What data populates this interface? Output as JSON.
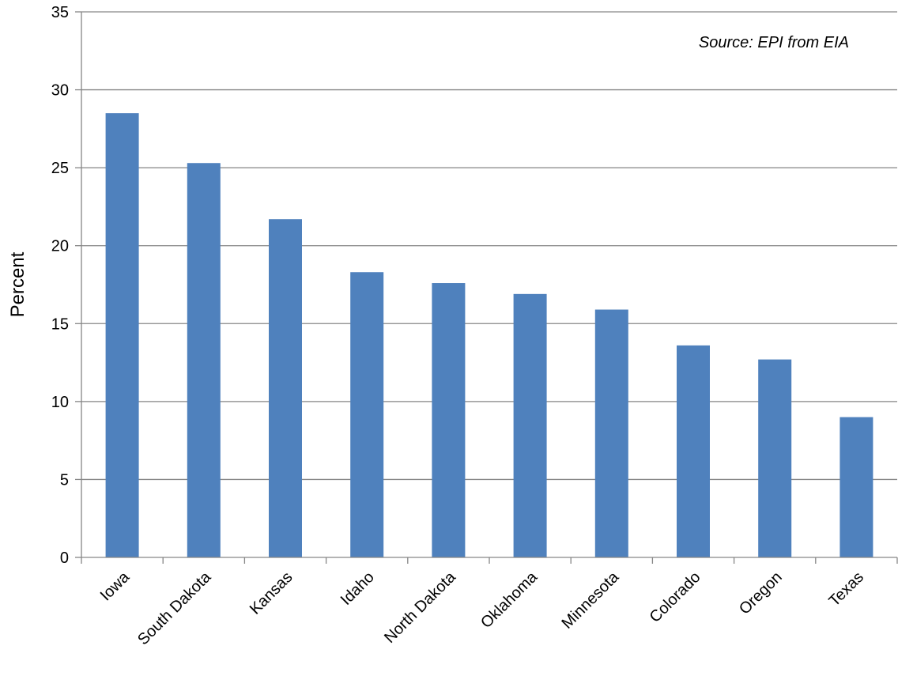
{
  "chart_data": {
    "type": "bar",
    "categories": [
      "Iowa",
      "South Dakota",
      "Kansas",
      "Idaho",
      "North Dakota",
      "Oklahoma",
      "Minnesota",
      "Colorado",
      "Oregon",
      "Texas"
    ],
    "values": [
      28.5,
      25.3,
      21.7,
      18.3,
      17.6,
      16.9,
      15.9,
      13.6,
      12.7,
      9.0
    ],
    "title": "",
    "xlabel": "",
    "ylabel": "Percent",
    "ylim": [
      0,
      35
    ],
    "yticks": [
      0,
      5,
      10,
      15,
      20,
      25,
      30,
      35
    ],
    "annotation": "Source: EPI from EIA",
    "grid": true,
    "bar_color": "#4F81BD",
    "grid_color": "#868686"
  }
}
